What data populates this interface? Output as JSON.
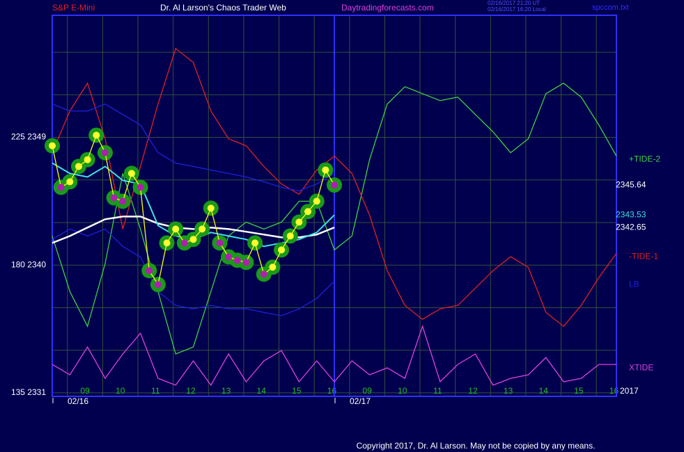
{
  "chart_data": {
    "type": "line",
    "title": "Dr. Al Larson's Chaos Trader Web",
    "symbol": "S&P E-Mini",
    "website": "Daytradingforecasts.com",
    "timestamps": [
      "02/16/2017 21:20 UT",
      "02/16/2017 16:20 Local"
    ],
    "file": "spccom.txt",
    "year_label": "2017",
    "copyright": "Copyright 2017, Dr. Al Larson. May not be copied by any means.",
    "xlim": [
      0,
      16
    ],
    "ylim": [
      2330.75,
      2357.6
    ],
    "yticks": [
      {
        "value": 2331,
        "label": "135  2331"
      },
      {
        "value": 2340,
        "label": "180  2340"
      },
      {
        "value": 2349,
        "label": "225  2349"
      }
    ],
    "ygrid": [
      2331,
      2334,
      2337,
      2340,
      2343,
      2346,
      2349,
      2352,
      2355
    ],
    "xticks": [
      {
        "value": 0.43,
        "label": "09"
      },
      {
        "value": 1.43,
        "label": "10"
      },
      {
        "value": 2.43,
        "label": "11"
      },
      {
        "value": 3.43,
        "label": "12"
      },
      {
        "value": 4.43,
        "label": "13"
      },
      {
        "value": 5.43,
        "label": "14"
      },
      {
        "value": 6.43,
        "label": "15"
      },
      {
        "value": 7.43,
        "label": "16"
      },
      {
        "value": 8.43,
        "label": "09"
      },
      {
        "value": 9.43,
        "label": "10"
      },
      {
        "value": 10.43,
        "label": "11"
      },
      {
        "value": 11.43,
        "label": "12"
      },
      {
        "value": 12.43,
        "label": "13"
      },
      {
        "value": 13.43,
        "label": "14"
      },
      {
        "value": 14.43,
        "label": "15"
      },
      {
        "value": 15.43,
        "label": "16"
      }
    ],
    "days": [
      {
        "value": 0,
        "label": "02/16"
      },
      {
        "value": 8,
        "label": "02/17"
      }
    ],
    "series": [
      {
        "name": "+TIDE-2",
        "color": "#40d040",
        "x": [
          0,
          0.5,
          1,
          1.5,
          2,
          2.5,
          3,
          3.5,
          4,
          4.5,
          5,
          5.5,
          6,
          6.5,
          7,
          7.5,
          8,
          8.5,
          9,
          9.5,
          10,
          10.5,
          11,
          11.5,
          12,
          12.5,
          13,
          13.5,
          14,
          14.5,
          15,
          15.5,
          16
        ],
        "values": [
          2342.05,
          2338.14,
          2335.69,
          2340.1,
          2346.46,
          2342.54,
          2338.14,
          2333.74,
          2334.23,
          2338.14,
          2342.05,
          2343.03,
          2342.54,
          2343.03,
          2344.5,
          2344.5,
          2341.07,
          2342.05,
          2347.43,
          2351.35,
          2352.57,
          2352.08,
          2351.59,
          2351.84,
          2350.61,
          2349.39,
          2347.92,
          2348.9,
          2352.08,
          2352.82,
          2351.84,
          2349.88,
          2347.68
        ]
      },
      {
        "name": "-TIDE-1",
        "color": "#e02020",
        "x": [
          0,
          0.5,
          1,
          1.5,
          2,
          2.5,
          3,
          3.5,
          4,
          4.5,
          5,
          5.5,
          6,
          6.5,
          7,
          7.5,
          8,
          8.5,
          9,
          9.5,
          10,
          10.5,
          11,
          11.5,
          12,
          12.5,
          13,
          13.5,
          14,
          14.5,
          15,
          15.5,
          16
        ],
        "values": [
          2347.92,
          2350.86,
          2352.82,
          2348.9,
          2342.54,
          2346.95,
          2351.35,
          2355.26,
          2354.28,
          2350.86,
          2348.9,
          2348.41,
          2346.95,
          2345.72,
          2344.99,
          2346.7,
          2347.68,
          2346.46,
          2343.52,
          2339.61,
          2337.16,
          2336.18,
          2336.92,
          2337.16,
          2338.38,
          2339.61,
          2340.59,
          2339.85,
          2336.67,
          2335.69,
          2337.16,
          2339.12,
          2340.83
        ]
      },
      {
        "name": "XTIDE",
        "color": "#e040e0",
        "x": [
          0,
          0.5,
          1,
          1.5,
          2,
          2.5,
          3,
          3.5,
          4,
          4.5,
          5,
          5.5,
          6,
          6.5,
          7,
          7.5,
          8,
          8.5,
          9,
          9.5,
          10,
          10.5,
          11,
          11.5,
          12,
          12.5,
          13,
          13.5,
          14,
          14.5,
          15,
          15.5,
          16
        ],
        "values": [
          2333.0,
          2332.27,
          2334.23,
          2332.02,
          2333.74,
          2335.2,
          2332.02,
          2331.54,
          2333.25,
          2331.54,
          2333.74,
          2331.78,
          2333.25,
          2333.98,
          2331.78,
          2333.25,
          2331.78,
          2333.25,
          2332.27,
          2332.76,
          2332.02,
          2335.69,
          2331.78,
          2333.0,
          2333.74,
          2331.54,
          2332.02,
          2332.27,
          2333.49,
          2331.78,
          2332.02,
          2333.0,
          2333.0
        ]
      },
      {
        "color": "#2020e0",
        "x": [
          0,
          0.5,
          1,
          1.5,
          2,
          2.5,
          3,
          3.5,
          4,
          4.5,
          5,
          5.5,
          6,
          6.5,
          7,
          7.5,
          8
        ],
        "values": [
          2351.35,
          2350.86,
          2350.86,
          2351.35,
          2350.61,
          2349.88,
          2347.92,
          2347.19,
          2346.95,
          2346.7,
          2346.46,
          2346.21,
          2345.87,
          2345.48,
          2345.23,
          2345.72,
          2346.46
        ]
      },
      {
        "name": "LB",
        "color": "#2020e0",
        "x": [
          0,
          0.5,
          1,
          1.5,
          2,
          2.5,
          3,
          3.5,
          4,
          4.5,
          5,
          5.5,
          6,
          6.5,
          7,
          7.5,
          8
        ],
        "values": [
          2341.81,
          2342.54,
          2342.05,
          2342.54,
          2341.32,
          2340.58,
          2338.14,
          2337.16,
          2336.92,
          2337.16,
          2336.92,
          2336.92,
          2336.67,
          2336.43,
          2336.92,
          2337.65,
          2338.87
        ]
      },
      {
        "color": "#ffffff",
        "width": 2.5,
        "label_last": true,
        "label_color": "#ffffff",
        "x": [
          0,
          0.5,
          1,
          1.5,
          2,
          2.5,
          3,
          3.5,
          4,
          4.5,
          5,
          5.5,
          6,
          6.5,
          7,
          7.5,
          8
        ],
        "values": [
          2341.56,
          2342.05,
          2342.64,
          2343.23,
          2343.42,
          2343.42,
          2342.93,
          2342.64,
          2342.54,
          2342.64,
          2342.54,
          2342.35,
          2342.15,
          2341.95,
          2341.95,
          2342.15,
          2342.65
        ]
      },
      {
        "color": "#40e0e0",
        "width": 2,
        "label_last": true,
        "label_color": "#40e0e0",
        "x": [
          0,
          0.5,
          1,
          1.5,
          2,
          2.5,
          3,
          3.5,
          4,
          4.5,
          5,
          5.5,
          6,
          6.5,
          7,
          7.5,
          8
        ],
        "values": [
          2347.19,
          2346.46,
          2346.21,
          2346.95,
          2345.97,
          2345.72,
          2342.79,
          2342.05,
          2341.81,
          2342.3,
          2342.05,
          2341.81,
          2341.32,
          2341.56,
          2341.81,
          2342.3,
          2343.53
        ]
      },
      {
        "color": "#ffff00",
        "markers": true,
        "label_last": true,
        "label_color": "#ffffff",
        "x": [
          0,
          0.25,
          0.5,
          0.75,
          1,
          1.25,
          1.5,
          1.75,
          2,
          2.25,
          2.5,
          2.75,
          3,
          3.25,
          3.5,
          3.75,
          4,
          4.25,
          4.5,
          4.75,
          5,
          5.25,
          5.5,
          5.75,
          6,
          6.25,
          6.5,
          6.75,
          7,
          7.25,
          7.5,
          7.75,
          8
        ],
        "values": [
          2348.41,
          2345.48,
          2345.87,
          2346.95,
          2347.43,
          2349.15,
          2347.92,
          2344.74,
          2344.5,
          2346.46,
          2345.48,
          2339.61,
          2338.63,
          2341.56,
          2342.54,
          2341.56,
          2341.81,
          2342.54,
          2344.01,
          2341.56,
          2340.58,
          2340.34,
          2340.19,
          2341.56,
          2339.36,
          2339.85,
          2341.07,
          2342.05,
          2343.03,
          2343.77,
          2344.5,
          2346.7,
          2345.64
        ]
      }
    ]
  }
}
